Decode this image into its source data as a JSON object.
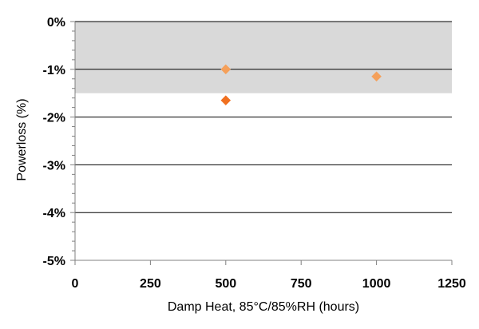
{
  "chart_data": {
    "type": "scatter",
    "title": "",
    "xlabel": "Damp Heat, 85°C/85%RH (hours)",
    "ylabel": "Powerloss (%)",
    "xlim": [
      0,
      1250
    ],
    "ylim": [
      -5,
      0
    ],
    "x_ticks": [
      0,
      250,
      500,
      750,
      1000,
      1250
    ],
    "x_tick_labels": [
      "0",
      "250",
      "500",
      "750",
      "1000",
      "1250"
    ],
    "y_ticks": [
      0,
      -1,
      -2,
      -3,
      -4,
      -5
    ],
    "y_tick_labels": [
      "0%",
      "-1%",
      "-2%",
      "-3%",
      "-4%",
      "-5%"
    ],
    "grid": "horizontal",
    "shaded_band": {
      "from": 0,
      "to": -1.5,
      "color": "#d9d9d9"
    },
    "series": [
      {
        "marker": "diamond",
        "color": "#f5a05a",
        "points": [
          {
            "x": 500,
            "y": -1.0
          },
          {
            "x": 1000,
            "y": -1.15
          }
        ]
      },
      {
        "marker": "diamond",
        "color": "#f07020",
        "points": [
          {
            "x": 500,
            "y": -1.65
          }
        ]
      }
    ]
  }
}
